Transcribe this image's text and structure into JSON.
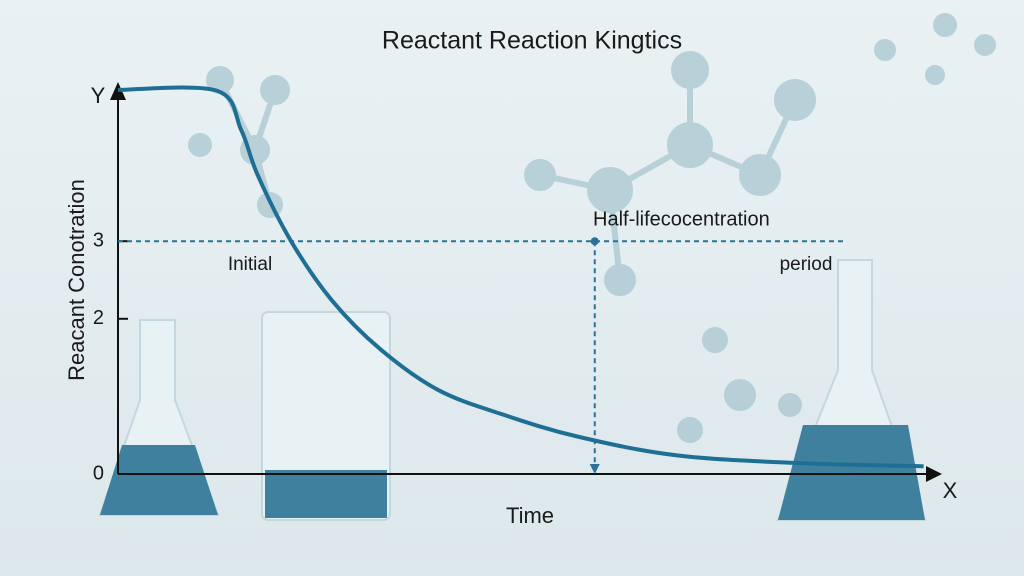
{
  "chart_data": {
    "type": "line",
    "title": "Reactant Reaction Kingtics",
    "x_label": "Time",
    "y_label": "Reacant Conotration",
    "x_axis_letter": "X",
    "y_axis_letter": "Y",
    "annotations": [
      "Half-lifecocentration",
      "Initial",
      "period"
    ],
    "half_life": {
      "x": 5.8,
      "y": 3
    },
    "x": [
      0,
      1.2,
      1.5,
      1.7,
      2.1,
      2.6,
      3.2,
      3.9,
      4.7,
      5.6,
      6.8,
      8.3,
      9.8
    ],
    "series": [
      {
        "color": "#1f6f94",
        "values": [
          4.95,
          4.94,
          4.43,
          3.85,
          3.01,
          2.24,
          1.6,
          1.08,
          0.76,
          0.48,
          0.24,
          0.14,
          0.1
        ]
      }
    ],
    "xlim": [
      0,
      10
    ],
    "ylim": [
      0,
      5
    ],
    "yticks": [
      0,
      2,
      3
    ]
  }
}
